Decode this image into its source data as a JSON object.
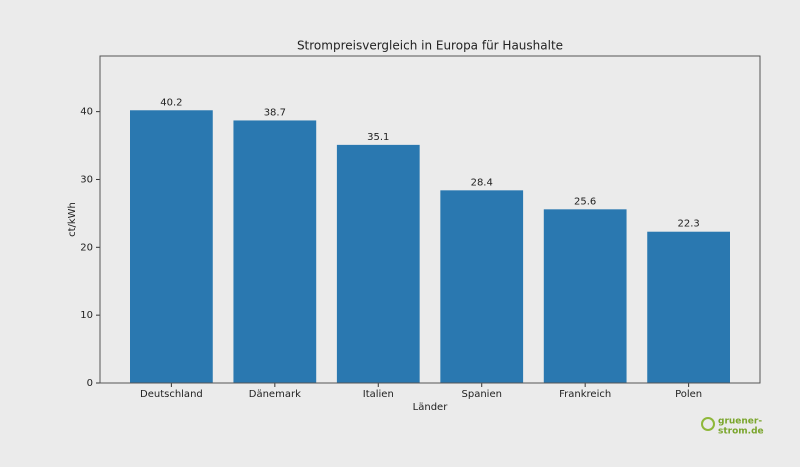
{
  "chart_data": {
    "type": "bar",
    "title": "Strompreisvergleich in Europa für Haushalte",
    "x_label": "Länder",
    "y_label": "ct/kWh",
    "categories": [
      "Deutschland",
      "Dänemark",
      "Italien",
      "Spanien",
      "Frankreich",
      "Polen"
    ],
    "values": [
      40.2,
      38.7,
      35.1,
      28.4,
      25.6,
      22.3
    ],
    "color": "#2a78b0",
    "ylim": [
      0,
      48.2
    ],
    "yticks": [
      0,
      10,
      20,
      30,
      40
    ],
    "grid": false,
    "show_value_labels": true
  },
  "logo": {
    "line1": "gruener-",
    "line2": "strom.de"
  }
}
